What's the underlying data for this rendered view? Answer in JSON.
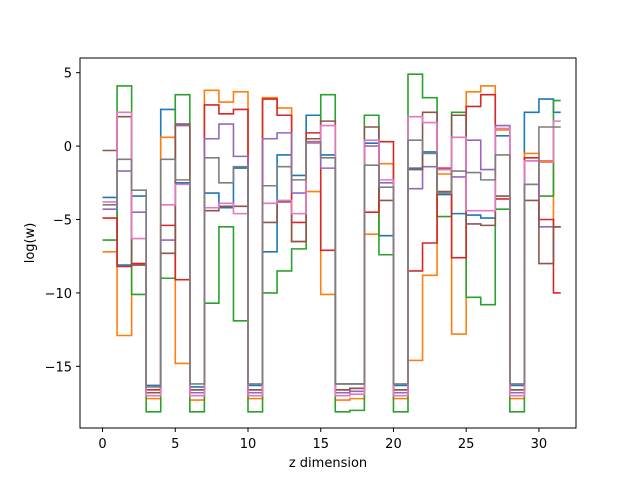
{
  "chart_data": {
    "type": "line",
    "step": "post",
    "xlabel": "z dimension",
    "ylabel": "log(w)",
    "xlim": [
      -1.55,
      32.55
    ],
    "ylim": [
      -19.2,
      6.0
    ],
    "xticks": [
      0,
      5,
      10,
      15,
      20,
      25,
      30
    ],
    "yticks": [
      -15,
      -10,
      -5,
      0,
      5
    ],
    "grid": false,
    "legend": "none",
    "series": [
      {
        "color": "#1f77b4",
        "values": [
          -3.5,
          -8.1,
          -3.4,
          -16.3,
          2.5,
          -2.5,
          -16.4,
          -3.2,
          -4.2,
          -1.5,
          -16.3,
          -7.2,
          -0.6,
          -2.0,
          2.1,
          -0.6,
          -16.2,
          -16.2,
          0.2,
          -6.1,
          -16.3,
          -1.5,
          -0.4,
          -3.3,
          -4.6,
          -4.7,
          -4.9,
          0.7,
          -16.3,
          2.3,
          3.2,
          2.3
        ]
      },
      {
        "color": "#ff7f0e",
        "values": [
          -7.2,
          -12.9,
          -8.0,
          -17.2,
          0.6,
          -14.8,
          -17.3,
          3.8,
          3.0,
          3.7,
          -17.2,
          3.3,
          2.6,
          -6.5,
          -3.1,
          -10.1,
          -17.3,
          -17.2,
          -6.0,
          -1.2,
          -17.2,
          -14.6,
          -8.8,
          -1.9,
          -12.8,
          3.7,
          4.1,
          1.1,
          -17.2,
          -0.5,
          -1.0,
          -5.5
        ]
      },
      {
        "color": "#2ca02c",
        "values": [
          -6.4,
          4.1,
          -10.1,
          -18.1,
          -9.0,
          3.5,
          -18.1,
          -10.7,
          -5.5,
          -11.9,
          -18.1,
          -10.0,
          -8.5,
          -7.0,
          0.5,
          3.5,
          -18.1,
          -18.0,
          2.1,
          -7.4,
          -18.1,
          4.9,
          3.3,
          -4.8,
          2.3,
          -10.3,
          -10.8,
          -4.3,
          -18.1,
          -2.6,
          -3.4,
          3.1
        ]
      },
      {
        "color": "#d62728",
        "values": [
          -4.9,
          -8.2,
          -8.0,
          -16.6,
          -5.4,
          -9.1,
          -16.6,
          2.8,
          2.2,
          2.5,
          -16.6,
          3.2,
          2.1,
          -5.2,
          0.9,
          -7.1,
          -16.6,
          -16.5,
          -4.5,
          0.3,
          -16.6,
          -8.5,
          -6.6,
          -1.5,
          -7.6,
          2.7,
          3.5,
          -3.6,
          -16.6,
          -0.8,
          -5.0,
          -10.0
        ]
      },
      {
        "color": "#9467bd",
        "values": [
          -4.3,
          -1.7,
          -4.5,
          -16.8,
          -6.4,
          1.4,
          -16.8,
          0.5,
          1.5,
          -0.7,
          -16.8,
          0.5,
          0.9,
          -3.2,
          0.3,
          -1.5,
          -16.8,
          -16.7,
          0.0,
          -2.5,
          -16.8,
          -2.9,
          -1.4,
          -1.6,
          -2.1,
          0.4,
          -1.6,
          1.4,
          -16.8,
          -1.0,
          -5.5,
          -5.5
        ]
      },
      {
        "color": "#8c564b",
        "values": [
          -0.3,
          2.0,
          -8.1,
          -16.8,
          -7.3,
          1.5,
          -16.6,
          -4.4,
          -4.1,
          -4.1,
          -16.6,
          -5.2,
          -3.8,
          -6.5,
          0.5,
          1.7,
          -16.6,
          -16.5,
          1.3,
          -3.7,
          -16.6,
          -1.6,
          2.3,
          -3.1,
          2.1,
          -5.3,
          -5.4,
          -3.4,
          -16.6,
          -3.7,
          -8.0,
          -5.5
        ]
      },
      {
        "color": "#e377c2",
        "values": [
          -3.8,
          2.3,
          -6.3,
          -17.0,
          -4.0,
          -2.6,
          -17.0,
          -4.2,
          -3.9,
          -4.6,
          -17.0,
          -3.9,
          -3.7,
          -4.6,
          0.2,
          1.4,
          -17.0,
          -16.9,
          0.4,
          -2.3,
          -17.0,
          2.0,
          1.6,
          -1.6,
          0.6,
          -4.4,
          -4.4,
          1.2,
          -17.0,
          -1.0,
          -1.1,
          1.7
        ]
      },
      {
        "color": "#7f7f7f",
        "values": [
          -4.0,
          -0.9,
          -3.0,
          -16.4,
          -0.9,
          -2.3,
          -16.2,
          -0.8,
          -2.5,
          -1.4,
          -16.2,
          -2.7,
          -1.4,
          -2.3,
          0.3,
          -0.8,
          -16.2,
          -16.2,
          -1.3,
          -2.8,
          -16.2,
          0.4,
          -0.5,
          -3.2,
          -1.7,
          -1.8,
          -2.3,
          -0.6,
          -16.2,
          -2.6,
          1.3,
          1.3
        ]
      }
    ]
  }
}
